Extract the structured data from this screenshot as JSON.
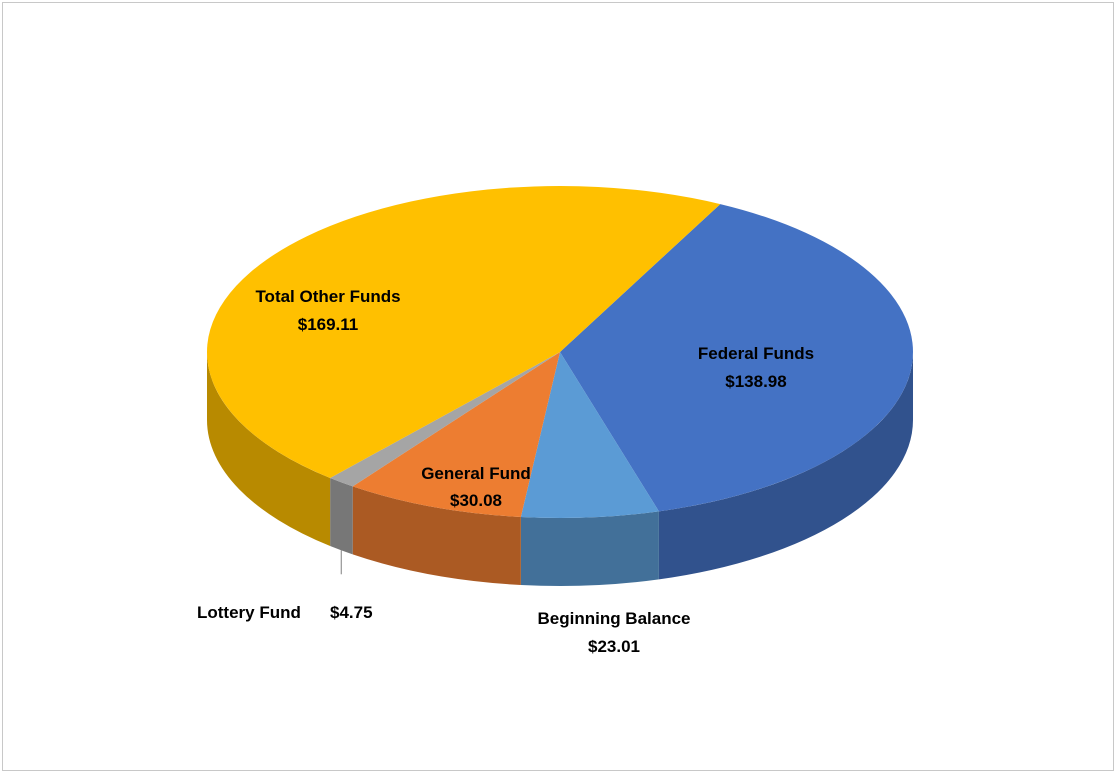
{
  "chart_data": {
    "type": "pie",
    "style": "3d",
    "title": "",
    "slices": [
      {
        "label": "Federal Funds",
        "value": 138.98,
        "value_label": "$138.98",
        "color": "#4472C4"
      },
      {
        "label": "Beginning Balance",
        "value": 23.01,
        "value_label": "$23.01",
        "color": "#5B9BD5"
      },
      {
        "label": "General Fund",
        "value": 30.08,
        "value_label": "$30.08",
        "color": "#ED7D31"
      },
      {
        "label": "Lottery Fund",
        "value": 4.75,
        "value_label": "$4.75",
        "color": "#A5A5A5"
      },
      {
        "label": "Total Other Funds",
        "value": 169.11,
        "value_label": "$169.11",
        "color": "#FFC000"
      }
    ],
    "legend": "none"
  }
}
